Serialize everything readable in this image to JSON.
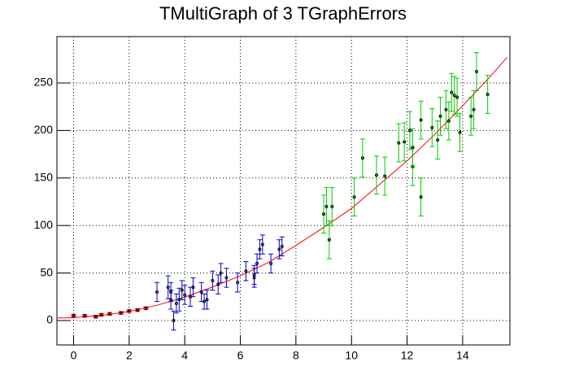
{
  "chart_data": {
    "type": "scatter",
    "title": "TMultiGraph of 3 TGraphErrors",
    "xlim": [
      -0.6,
      15.7
    ],
    "ylim": [
      -25.7,
      298.8
    ],
    "xticks": [
      0,
      2,
      4,
      6,
      8,
      10,
      12,
      14
    ],
    "yticks": [
      0,
      50,
      100,
      150,
      200,
      250
    ],
    "grid": true,
    "series": [
      {
        "color": "#ff0000",
        "x": [
          0.0,
          0.4,
          0.8,
          1.0,
          1.3,
          1.7,
          2.0,
          2.3,
          2.6
        ],
        "values": [
          5,
          5,
          4,
          6,
          7,
          8,
          10,
          11,
          13
        ],
        "errors": [
          1.5,
          1.5,
          1.5,
          1.5,
          1.5,
          1.5,
          1.5,
          1.5,
          1.5
        ],
        "x_errors": [
          0.1,
          0.1,
          0.1,
          0.1,
          0.1,
          0.1,
          0.1,
          0.1,
          0.1
        ]
      },
      {
        "color": "#0000cc",
        "x": [
          3.0,
          3.4,
          3.5,
          3.5,
          3.6,
          3.7,
          3.8,
          3.9,
          4.0,
          4.2,
          4.3,
          4.6,
          4.7,
          4.8,
          5.0,
          5.2,
          5.3,
          5.5,
          5.9,
          6.2,
          6.5,
          6.5,
          6.6,
          6.7,
          6.8,
          7.1,
          7.4,
          7.5
        ],
        "values": [
          30,
          35,
          22,
          30,
          0,
          18,
          22,
          32,
          27,
          25,
          35,
          30,
          20,
          22,
          42,
          38,
          50,
          45,
          40,
          52,
          48,
          45,
          60,
          75,
          80,
          60,
          75,
          78
        ],
        "errors": [
          10,
          12,
          10,
          10,
          10,
          10,
          12,
          10,
          10,
          10,
          10,
          10,
          8,
          10,
          10,
          10,
          10,
          10,
          10,
          10,
          10,
          10,
          10,
          10,
          10,
          10,
          10,
          10
        ]
      },
      {
        "color": "#00cc00",
        "x": [
          9.0,
          9.1,
          9.2,
          9.3,
          10.1,
          10.4,
          10.9,
          11.2,
          11.7,
          11.9,
          12.1,
          12.2,
          12.2,
          12.5,
          12.5,
          12.9,
          13.1,
          13.2,
          13.4,
          13.5,
          13.6,
          13.7,
          13.8,
          13.9,
          14.3,
          14.4,
          14.5,
          14.9
        ],
        "values": [
          112,
          120,
          85,
          120,
          130,
          171,
          153,
          152,
          187,
          188,
          200,
          162,
          182,
          130,
          211,
          203,
          190,
          215,
          222,
          210,
          240,
          237,
          235,
          198,
          215,
          222,
          262,
          238
        ],
        "errors": [
          20,
          20,
          20,
          20,
          20,
          20,
          20,
          20,
          20,
          20,
          20,
          20,
          20,
          20,
          20,
          20,
          20,
          20,
          20,
          20,
          20,
          20,
          20,
          20,
          20,
          20,
          20,
          20
        ],
        "x_errors": [
          0.05,
          0.05,
          0.05,
          0.05,
          0.05,
          0.05,
          0.05,
          0.05,
          0.05,
          0.05,
          0.05,
          0.05,
          0.05,
          0.05,
          0.05,
          0.05,
          0.05,
          0.05,
          0.05,
          0.05,
          0.05,
          0.05,
          0.05,
          0.05,
          0.05,
          0.05,
          0.05,
          0.05
        ]
      }
    ],
    "fit": {
      "color": "#ff0000",
      "x": [
        -0.6,
        0,
        1,
        2,
        3,
        4,
        5,
        6,
        7,
        8,
        9,
        10,
        11,
        12,
        13,
        14,
        15,
        15.6
      ],
      "values": [
        2.7,
        3,
        5.3,
        9.6,
        16.1,
        24.6,
        35.3,
        47,
        60.9,
        79,
        98,
        118,
        143,
        168,
        196,
        226,
        257,
        277
      ]
    }
  }
}
